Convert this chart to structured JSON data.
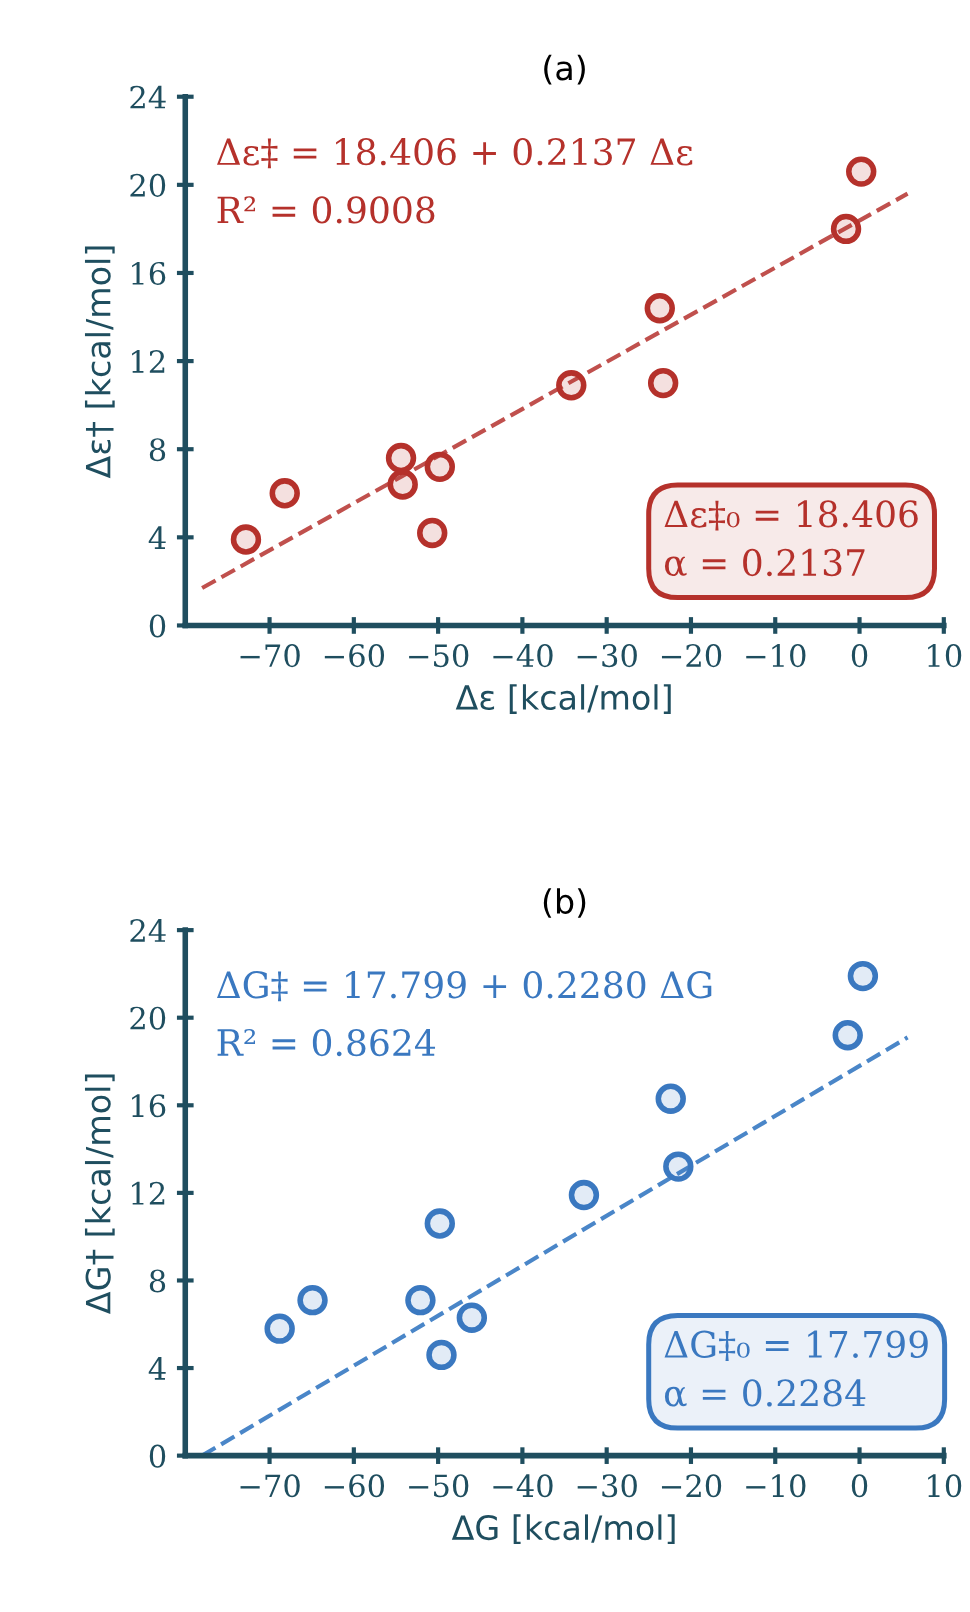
{
  "chart_data": [
    {
      "type": "scatter",
      "title": "(a)",
      "xlabel": "Δε [kcal/mol]",
      "ylabel": "Δε† [kcal/mol]",
      "xlim": [
        -80,
        10
      ],
      "xticks": [
        {
          "value": -70,
          "label": "−70"
        },
        {
          "value": -60,
          "label": "−60"
        },
        {
          "value": -50,
          "label": "−50"
        },
        {
          "value": -40,
          "label": "−40"
        },
        {
          "value": -30,
          "label": "−30"
        },
        {
          "value": -20,
          "label": "−20"
        },
        {
          "value": -10,
          "label": "−10"
        },
        0,
        10
      ],
      "ylim": [
        0,
        24
      ],
      "yticks": [
        0,
        4,
        8,
        12,
        16,
        20,
        24
      ],
      "grid": false,
      "legend": false,
      "annotations": [
        "Δε‡ = 18.406 + 0.2137 Δε",
        "R² = 0.9008",
        "Δε‡₀ = 18.406\nα = 0.2137"
      ],
      "series": [
        {
          "color": "#b5312b",
          "marker": "circle",
          "x": [
            -72.8,
            -68.2,
            -54.4,
            -54.2,
            -49.8,
            -50.7,
            -34.2,
            -23.7,
            -23.3,
            -1.6,
            0.2
          ],
          "values": [
            3.9,
            6.0,
            7.6,
            6.4,
            7.2,
            4.2,
            10.9,
            14.4,
            11.0,
            18.0,
            20.6
          ]
        },
        {
          "type": "line",
          "color": "#c0504d",
          "line_style": "dashed",
          "marker": "none",
          "x": [
            -78,
            5.7
          ],
          "values": [
            1.7,
            19.6
          ]
        }
      ]
    },
    {
      "type": "scatter",
      "title": "(b)",
      "xlabel": "ΔG [kcal/mol]",
      "ylabel": "ΔG† [kcal/mol]",
      "xlim": [
        -80,
        10
      ],
      "xticks": [
        {
          "value": -70,
          "label": "−70"
        },
        {
          "value": -60,
          "label": "−60"
        },
        {
          "value": -50,
          "label": "−50"
        },
        {
          "value": -40,
          "label": "−40"
        },
        {
          "value": -30,
          "label": "−30"
        },
        {
          "value": -20,
          "label": "−20"
        },
        {
          "value": -10,
          "label": "−10"
        },
        0,
        10
      ],
      "ylim": [
        0,
        24
      ],
      "yticks": [
        0,
        4,
        8,
        12,
        16,
        20,
        24
      ],
      "grid": false,
      "legend": false,
      "annotations": [
        "ΔG‡ = 17.799 + 0.2280 ΔG",
        "R² = 0.8624",
        "ΔG‡₀ = 17.799\nα = 0.2284"
      ],
      "series": [
        {
          "color": "#3a78c0",
          "marker": "circle",
          "x": [
            -68.8,
            -64.9,
            -52.1,
            -49.8,
            -49.6,
            -46.0,
            -32.7,
            -22.4,
            -21.5,
            -1.4,
            0.4
          ],
          "values": [
            5.8,
            7.1,
            7.1,
            10.6,
            4.6,
            6.3,
            11.9,
            16.3,
            13.2,
            19.2,
            21.9
          ]
        },
        {
          "type": "line",
          "color": "#4a86c8",
          "line_style": "dashed",
          "marker": "none",
          "x": [
            -78,
            5.7
          ],
          "values": [
            0.0,
            19.1
          ]
        }
      ]
    }
  ]
}
